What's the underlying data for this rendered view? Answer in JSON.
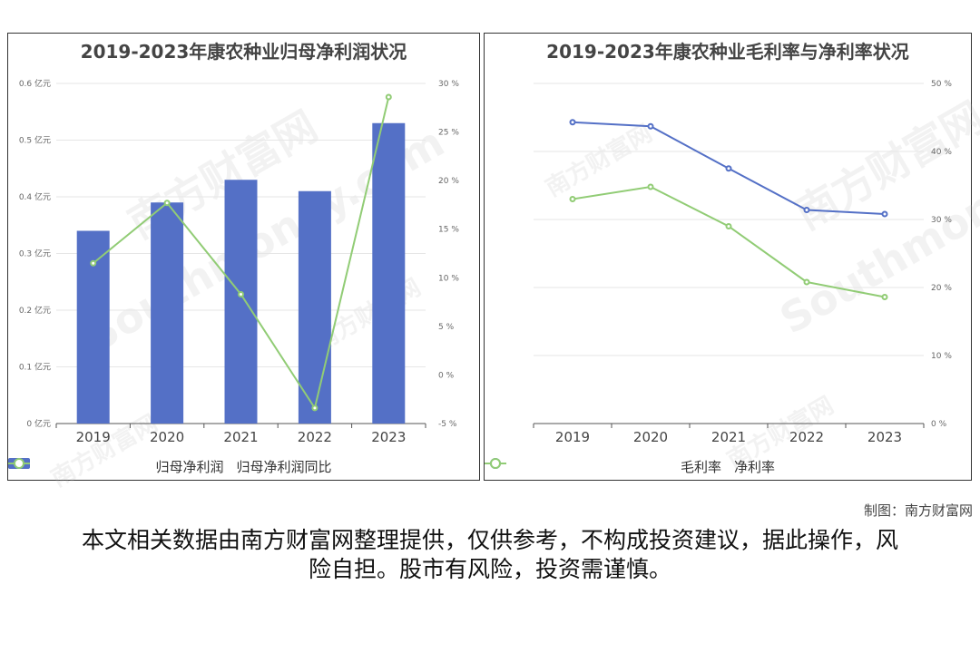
{
  "watermark": {
    "cn": "南方财富网",
    "en": "Southmoney.com"
  },
  "charts": {
    "left": {
      "title": "2019-2023年康农种业归母净利润状况"
    },
    "right": {
      "title": "2019-2023年康农种业毛利率与净利率状况"
    }
  },
  "footer": {
    "credit": "制图：南方财富网",
    "disclaimer": "本文相关数据由南方财富网整理提供，仅供参考，不构成投资建议，据此操作，风险自担。股市有风险，投资需谨慎。"
  },
  "chart_data": [
    {
      "type": "bar",
      "title": "2019-2023年康农种业归母净利润状况",
      "categories": [
        "2019",
        "2020",
        "2021",
        "2022",
        "2023"
      ],
      "series": [
        {
          "name": "归母净利润",
          "type": "bar",
          "axis": "left",
          "values": [
            0.34,
            0.39,
            0.43,
            0.41,
            0.53
          ],
          "color": "#5470c6"
        },
        {
          "name": "归母净利润同比",
          "type": "line",
          "axis": "right",
          "values": [
            11.5,
            17.7,
            8.3,
            -3.4,
            28.6
          ],
          "color": "#91cc75"
        }
      ],
      "y_left": {
        "min": 0,
        "max": 0.6,
        "ticks": [
          "0 亿元",
          "0.1 亿元",
          "0.2 亿元",
          "0.3 亿元",
          "0.4 亿元",
          "0.5 亿元",
          "0.6 亿元"
        ]
      },
      "y_right": {
        "min": -5,
        "max": 30,
        "ticks": [
          "-5 %",
          "0 %",
          "5 %",
          "10 %",
          "15 %",
          "20 %",
          "25 %",
          "30 %"
        ]
      },
      "legend": "bottom",
      "grid": true
    },
    {
      "type": "line",
      "title": "2019-2023年康农种业毛利率与净利率状况",
      "categories": [
        "2019",
        "2020",
        "2021",
        "2022",
        "2023"
      ],
      "series": [
        {
          "name": "毛利率",
          "values": [
            44.3,
            43.7,
            37.5,
            31.4,
            30.8
          ],
          "color": "#5470c6"
        },
        {
          "name": "净利率",
          "values": [
            33.0,
            34.8,
            29.0,
            20.8,
            18.6
          ],
          "color": "#91cc75"
        }
      ],
      "y_right": {
        "min": 0,
        "max": 50,
        "ticks": [
          "0 %",
          "10 %",
          "20 %",
          "30 %",
          "40 %",
          "50 %"
        ]
      },
      "legend": "bottom",
      "grid": true
    }
  ]
}
